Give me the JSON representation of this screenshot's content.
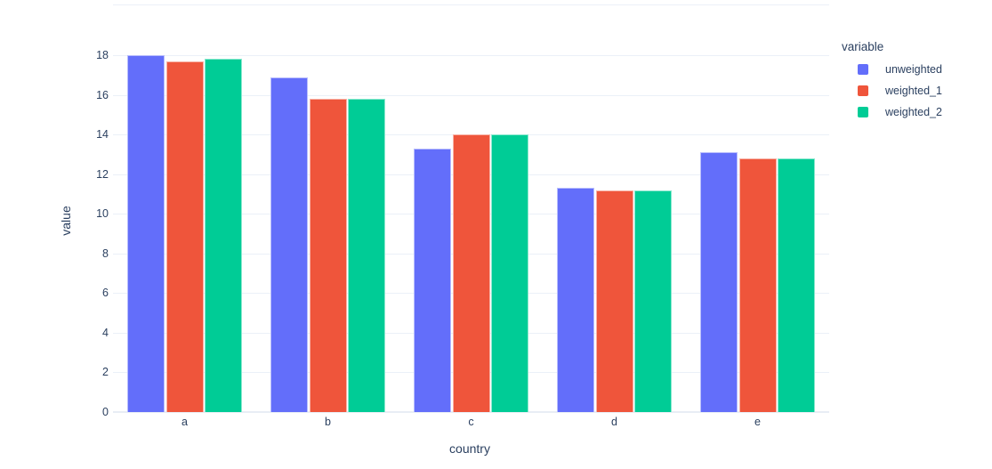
{
  "chart_data": {
    "type": "bar",
    "mode": "grouped",
    "title": "",
    "xlabel": "country",
    "ylabel": "value",
    "categories": [
      "a",
      "b",
      "c",
      "d",
      "e"
    ],
    "series": [
      {
        "name": "unweighted",
        "color": "#636EFA",
        "values": [
          18.0,
          16.9,
          13.3,
          11.3,
          13.1
        ]
      },
      {
        "name": "weighted_1",
        "color": "#EF553B",
        "values": [
          17.7,
          15.8,
          14.0,
          11.2,
          12.8
        ]
      },
      {
        "name": "weighted_2",
        "color": "#00CC96",
        "values": [
          17.8,
          15.8,
          14.0,
          11.2,
          12.8
        ]
      }
    ],
    "yticks": [
      0,
      2,
      4,
      6,
      8,
      10,
      12,
      14,
      16,
      18
    ],
    "ylim": [
      0,
      20.5
    ],
    "grid": true,
    "legend_position": "right"
  },
  "legend": {
    "title": "variable"
  },
  "colors": {
    "text": "#2a3f5f",
    "gridline": "#EBF0F8",
    "zeroline": "#E8EDF5",
    "background": "#FFFFFF"
  }
}
